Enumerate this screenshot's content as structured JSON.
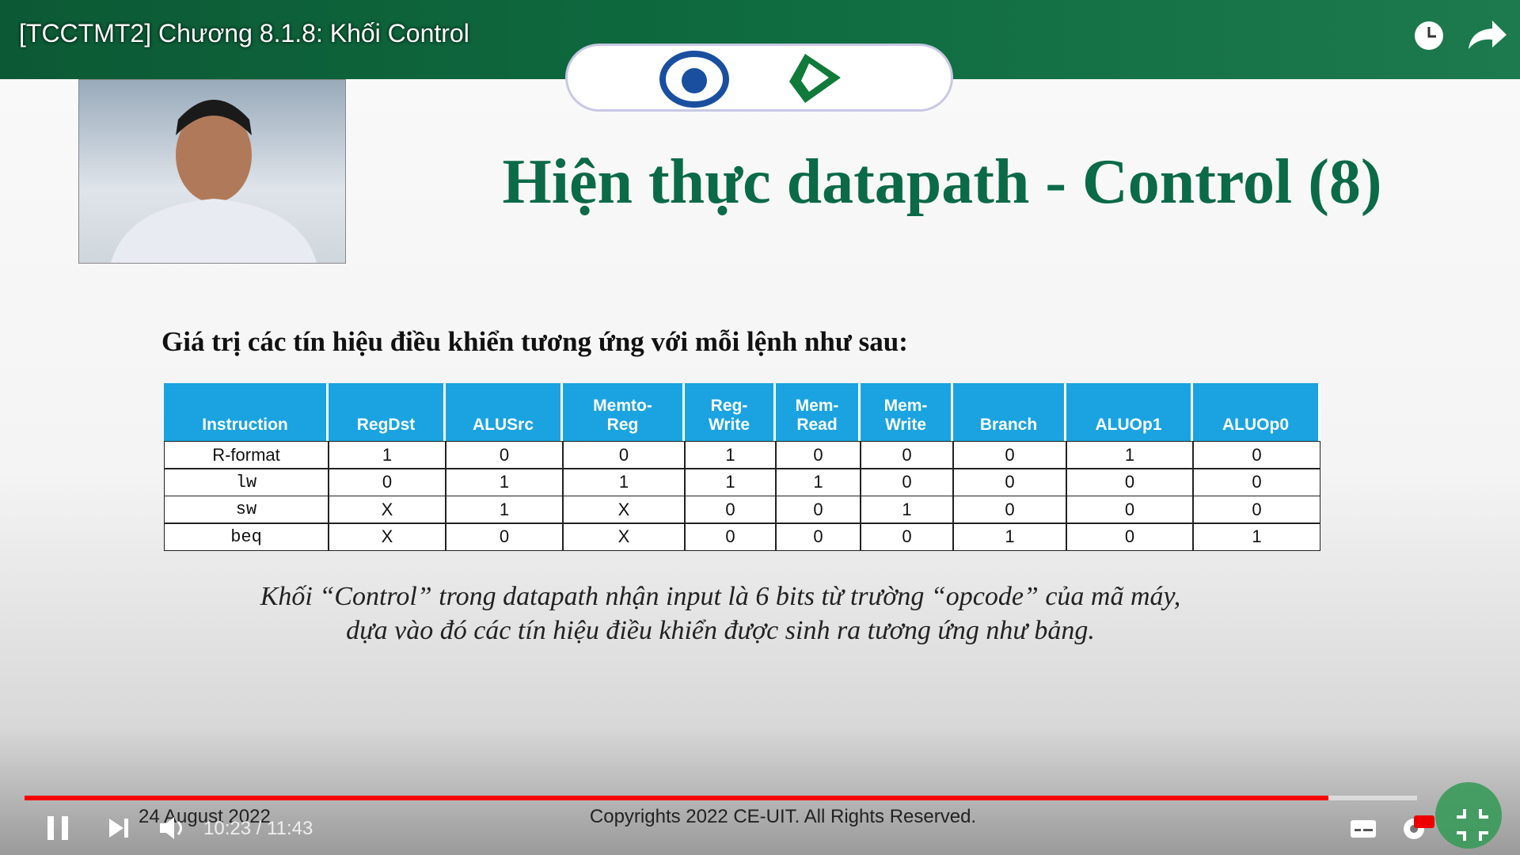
{
  "video": {
    "title": "[TCCTMT2] Chương 8.1.8: Khối Control",
    "current_time": "10:23",
    "separator": "/",
    "duration": "11:43"
  },
  "slide": {
    "heading": "Hiện thực datapath - Control (8)",
    "subtitle": "Giá trị các tín hiệu điều khiển tương ứng với mỗi lệnh như sau:",
    "table": {
      "headers": [
        [
          "Instruction"
        ],
        [
          "RegDst"
        ],
        [
          "ALUSrc"
        ],
        [
          "Memto-",
          "Reg"
        ],
        [
          "Reg-",
          "Write"
        ],
        [
          "Mem-",
          "Read"
        ],
        [
          "Mem-",
          "Write"
        ],
        [
          "Branch"
        ],
        [
          "ALUOp1"
        ],
        [
          "ALUOp0"
        ]
      ],
      "rows": [
        [
          "R-format",
          "1",
          "0",
          "0",
          "1",
          "0",
          "0",
          "0",
          "1",
          "0"
        ],
        [
          "lw",
          "0",
          "1",
          "1",
          "1",
          "1",
          "0",
          "0",
          "0",
          "0"
        ],
        [
          "sw",
          "X",
          "1",
          "X",
          "0",
          "0",
          "1",
          "0",
          "0",
          "0"
        ],
        [
          "beq",
          "X",
          "0",
          "X",
          "0",
          "0",
          "0",
          "1",
          "0",
          "1"
        ]
      ]
    },
    "caption": [
      "Khối “Control” trong datapath nhận input là 6 bits từ trường “opcode” của mã máy,",
      "dựa vào đó các tín hiệu điều khiển được sinh ra tương ứng như bảng."
    ],
    "date": "24 August 2022",
    "copyright": "Copyrights 2022 CE-UIT. All Rights Reserved."
  }
}
